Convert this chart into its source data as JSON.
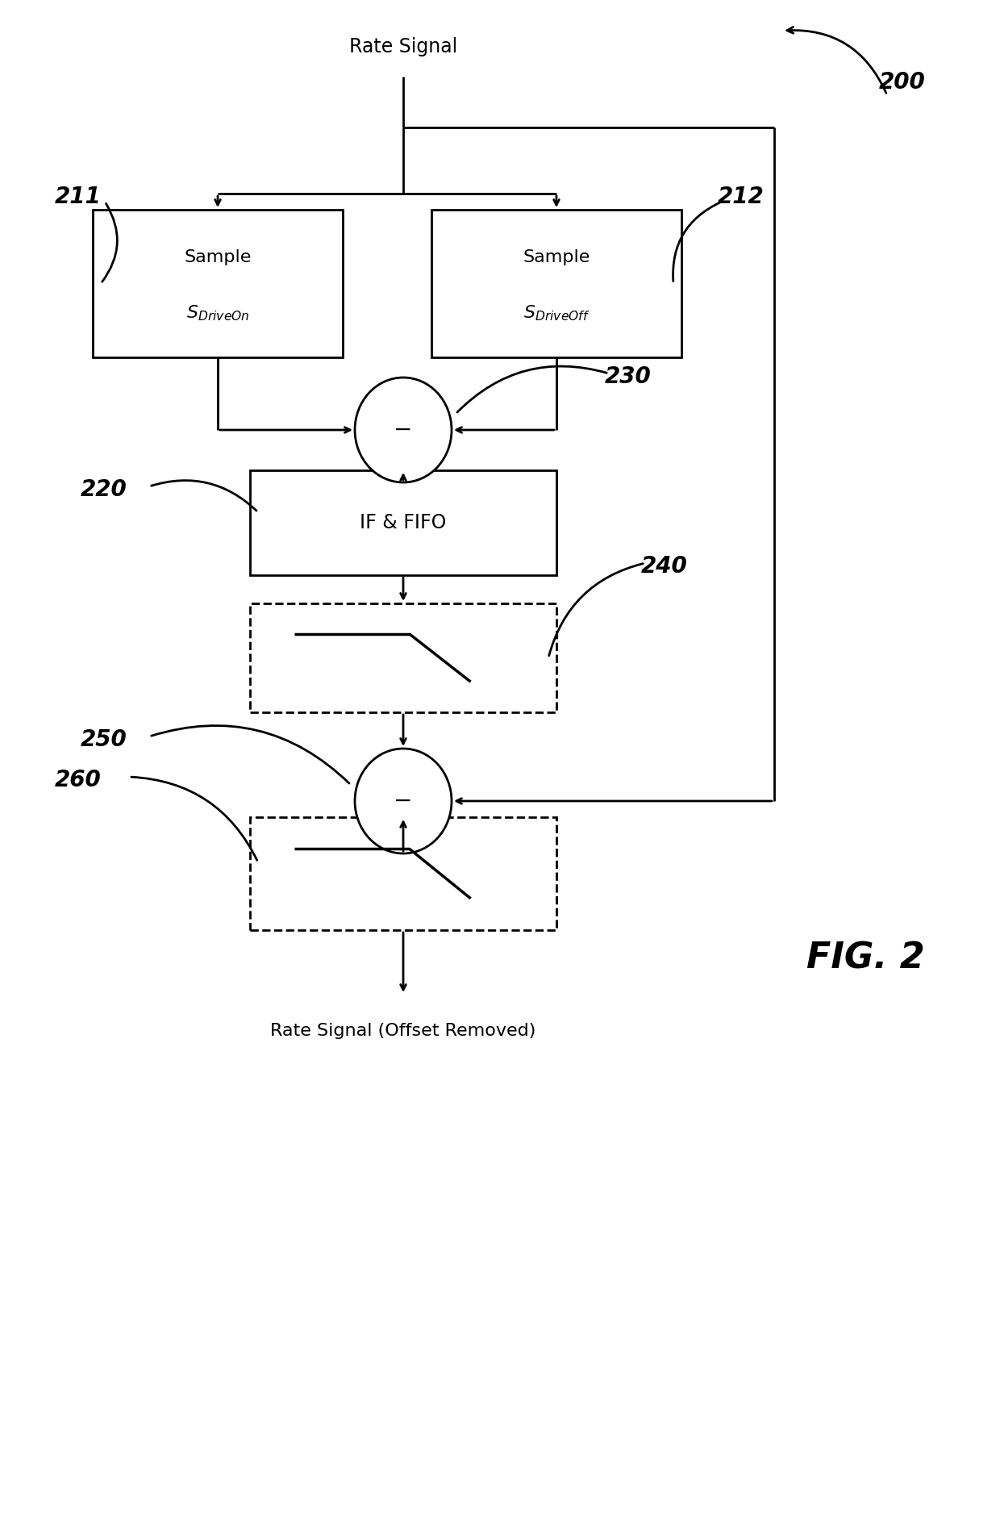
{
  "bg_color": "#ffffff",
  "line_color": "#000000",
  "fig_width": 12.4,
  "fig_height": 18.88,
  "title": "FIG. 2",
  "label_200": "200",
  "label_211": "211",
  "label_212": "212",
  "label_220": "220",
  "label_230": "230",
  "label_240": "240",
  "label_250": "250",
  "label_260": "260",
  "text_rate_signal": "Rate Signal",
  "text_sample_driveon_line1": "Sample",
  "text_s_driveon": "$S_{DriveOn}$",
  "text_sample_driveoff_line1": "Sample",
  "text_s_driveoff": "$S_{DriveOff}$",
  "text_if_fifo": "IF & FIFO",
  "text_rate_signal_out": "Rate Signal (Offset Removed)"
}
